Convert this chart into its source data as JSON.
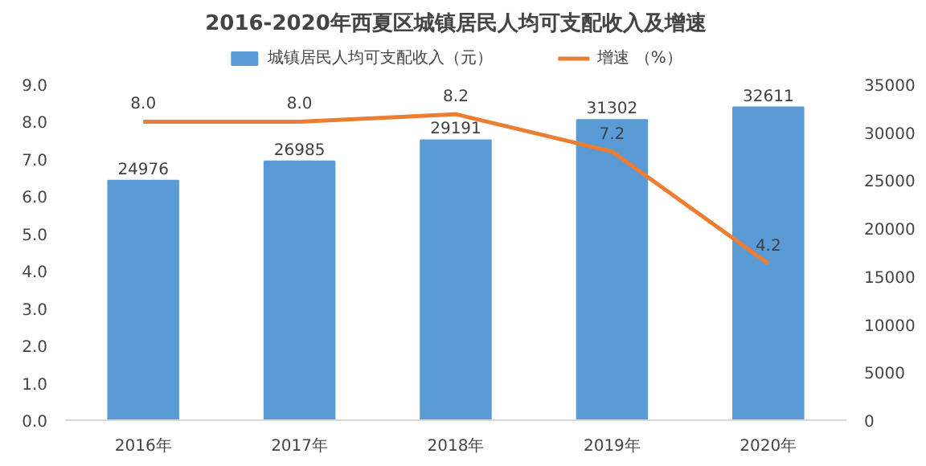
{
  "chart_data": {
    "type": "bar",
    "title": "2016-2020年西夏区城镇居民人均可支配收入及增速",
    "categories": [
      "2016年",
      "2017年",
      "2018年",
      "2019年",
      "2020年"
    ],
    "series": [
      {
        "name": "城镇居民人均可支配收入（元）",
        "axis": "y2",
        "color": "#5b9bd5",
        "values": [
          24976,
          26985,
          29191,
          31302,
          32611
        ]
      },
      {
        "name": "增速 （%）",
        "type": "line",
        "color": "#ed7d31",
        "values": [
          8.0,
          8.0,
          8.2,
          7.2,
          4.2
        ],
        "value_labels": [
          "8.0",
          "8.0",
          "8.2",
          "7.2",
          "4.2"
        ]
      }
    ],
    "ylim": [
      0,
      9
    ],
    "yticks": [
      {
        "value": 0,
        "label": "0.0"
      },
      {
        "value": 1,
        "label": "1.0"
      },
      {
        "value": 2,
        "label": "2.0"
      },
      {
        "value": 3,
        "label": "3.0"
      },
      {
        "value": 4,
        "label": "4.0"
      },
      {
        "value": 5,
        "label": "5.0"
      },
      {
        "value": 6,
        "label": "6.0"
      },
      {
        "value": 7,
        "label": "7.0"
      },
      {
        "value": 8,
        "label": "8.0"
      },
      {
        "value": 9,
        "label": "9.0"
      }
    ],
    "y2lim": [
      0,
      35000
    ],
    "y2ticks": [
      0,
      5000,
      10000,
      15000,
      20000,
      25000,
      30000,
      35000
    ],
    "data_labels": true,
    "legend": "top",
    "grid": false,
    "marker": "none",
    "line_style": "solid"
  }
}
